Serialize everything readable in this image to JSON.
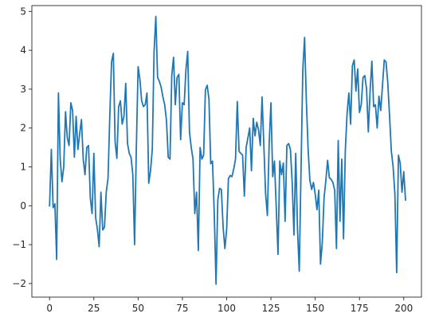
{
  "chart_data": {
    "type": "line",
    "title": "",
    "xlabel": "",
    "ylabel": "",
    "xlim": [
      -10,
      210
    ],
    "ylim": [
      -2.35,
      5.15
    ],
    "grid": false,
    "legend": "none",
    "x_ticks": [
      0,
      25,
      50,
      75,
      100,
      125,
      150,
      175,
      200
    ],
    "y_ticks": [
      -2,
      -1,
      0,
      1,
      2,
      3,
      4,
      5
    ],
    "x_tick_labels": [
      "0",
      "25",
      "50",
      "75",
      "100",
      "125",
      "150",
      "175",
      "200"
    ],
    "y_tick_labels": [
      "−2",
      "−1",
      "0",
      "1",
      "2",
      "3",
      "4",
      "5"
    ],
    "series": [
      {
        "color": "#1f77b4",
        "x_start": 0,
        "x_step": 1,
        "values": [
          0.0,
          1.45,
          -0.05,
          0.05,
          -1.38,
          2.9,
          1.2,
          0.62,
          1.0,
          2.42,
          1.75,
          1.55,
          2.65,
          2.45,
          1.25,
          2.3,
          1.45,
          1.85,
          2.22,
          1.2,
          0.8,
          1.5,
          1.55,
          0.2,
          -0.2,
          1.35,
          -0.3,
          -0.6,
          -1.05,
          0.35,
          -0.62,
          -0.55,
          0.35,
          0.7,
          2.3,
          3.7,
          3.92,
          1.65,
          1.22,
          2.55,
          2.7,
          2.1,
          2.3,
          3.15,
          1.6,
          1.35,
          1.25,
          0.8,
          -1.0,
          1.5,
          3.58,
          3.25,
          2.7,
          2.55,
          2.6,
          2.9,
          0.58,
          0.9,
          1.45,
          3.95,
          4.87,
          3.3,
          3.2,
          3.05,
          2.8,
          2.6,
          2.2,
          1.25,
          1.2,
          3.35,
          3.82,
          2.6,
          3.3,
          3.38,
          1.7,
          2.65,
          2.6,
          3.5,
          3.97,
          1.9,
          1.5,
          1.2,
          -0.2,
          0.35,
          -1.15,
          1.5,
          1.2,
          1.3,
          2.98,
          3.1,
          2.75,
          1.08,
          1.15,
          -0.2,
          -2.02,
          0.15,
          0.45,
          0.42,
          -0.55,
          -1.1,
          -0.6,
          0.7,
          0.78,
          0.75,
          0.95,
          1.2,
          2.68,
          1.4,
          1.35,
          1.3,
          0.25,
          1.5,
          1.75,
          2.0,
          0.9,
          2.25,
          1.8,
          2.15,
          1.95,
          1.55,
          2.8,
          1.55,
          0.3,
          -0.25,
          1.6,
          2.65,
          0.75,
          1.15,
          -0.05,
          -1.25,
          1.15,
          0.8,
          1.1,
          -0.4,
          1.55,
          1.6,
          1.45,
          0.6,
          -0.75,
          1.35,
          -0.6,
          -1.68,
          0.95,
          3.5,
          4.33,
          2.7,
          1.45,
          0.65,
          0.42,
          0.6,
          0.3,
          -0.1,
          0.4,
          -1.5,
          -0.95,
          0.2,
          0.65,
          1.17,
          0.72,
          0.68,
          0.6,
          0.4,
          -1.1,
          1.68,
          -0.4,
          1.2,
          -0.85,
          1.42,
          2.38,
          2.9,
          2.1,
          3.6,
          3.75,
          2.95,
          3.52,
          2.4,
          2.6,
          3.3,
          3.35,
          3.0,
          1.9,
          2.95,
          3.72,
          2.55,
          2.6,
          2.0,
          2.82,
          2.45,
          3.1,
          3.75,
          3.7,
          3.15,
          2.3,
          1.4,
          1.0,
          0.3,
          -1.72,
          1.3,
          1.1,
          0.35,
          0.88,
          0.15
        ]
      }
    ]
  }
}
